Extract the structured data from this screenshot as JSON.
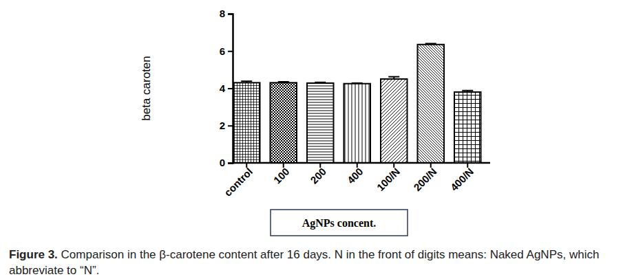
{
  "chart_data": {
    "type": "bar",
    "title": "Figure 3.",
    "subtitle": "Comparison in the β-carotene content after 16 days. N in the front of digits means: Naked AgNPs, which abbreviate to “N”.",
    "x_label": "AgNPs concent.",
    "y_label": "beta caroten",
    "categories": [
      "control",
      "100",
      "200",
      "400",
      "100/N",
      "200/N",
      "400/N"
    ],
    "values": [
      4.3,
      4.3,
      4.28,
      4.25,
      4.5,
      6.35,
      3.8
    ],
    "errors": [
      0.08,
      0.05,
      0.04,
      0.03,
      0.12,
      0.05,
      0.08
    ],
    "color": "#000000",
    "ylim": [
      0,
      8
    ],
    "yticks": [
      0,
      2,
      4,
      6,
      8
    ],
    "grid": false
  }
}
